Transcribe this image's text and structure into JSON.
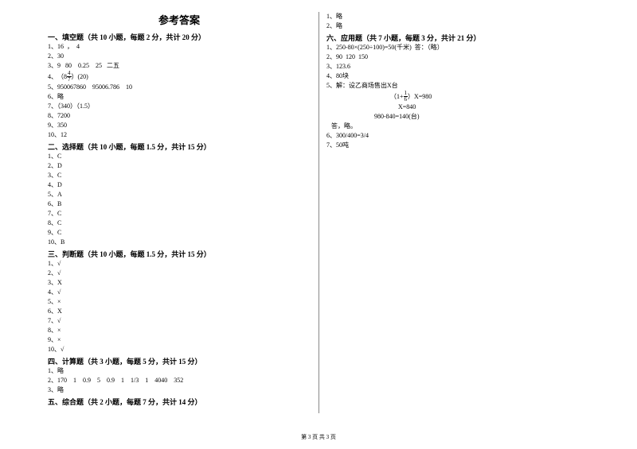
{
  "title": "参考答案",
  "sections": [
    {
      "header": "一、填空题（共 10 小题，每题 2 分，共计 20 分）",
      "items": [
        "1、16  ，  4",
        "2、30",
        "3、9   80    0.25    25   二五",
        {
          "type": "fracline",
          "prefix": "4、",
          "open": "（8",
          "num": "4",
          "den": "7",
          "close": "）(20)"
        },
        "5、950067860    95006.786    10",
        "6、略",
        "7、（340）（1.5）",
        "8、7200",
        "9、350",
        "10、12"
      ]
    },
    {
      "header": "二、选择题（共 10 小题，每题 1.5 分，共计 15 分）",
      "items": [
        "1、C",
        "2、D",
        "3、C",
        "4、D",
        "5、A",
        "6、B",
        "7、C",
        "8、C",
        "9、C",
        "10、B"
      ]
    },
    {
      "header": "三、判断题（共 10 小题，每题 1.5 分，共计 15 分）",
      "items": [
        "1、√",
        "2、√",
        "3、X",
        "4、√",
        "5、×",
        "6、X",
        "7、√",
        "8、×",
        "9、×",
        "10、√"
      ]
    },
    {
      "header": "四、计算题（共 3 小题，每题 5 分，共计 15 分）",
      "items": [
        "1、略",
        "2、170    1    0.9    5    0.9    1    1/3    1    4040    352",
        "3、略"
      ]
    },
    {
      "header": "五、综合题（共 2 小题，每题 7 分，共计 14 分）",
      "items": [
        "1、略",
        "2、略"
      ]
    },
    {
      "header": "六、应用题（共 7 小题，每题 3 分，共计 21 分）",
      "items": [
        "1、250-80×(250÷100)=50(千米)  答：（略）",
        "2、90  120  150",
        "3、123.6",
        "4、80块",
        "5、解：设乙商场售出X台",
        {
          "type": "eqline",
          "indent": "indent-big",
          "pre": "（1+",
          "num": "1",
          "den": "6",
          "post": "）X=980"
        },
        {
          "type": "plain",
          "indent": "indent-big",
          "text": "     X=840"
        },
        {
          "type": "plain",
          "indent": "indent-med",
          "text": "980-840=140(台)"
        },
        {
          "type": "plain",
          "indent": "",
          "text": "   答，略。"
        },
        "6、300/400=3/4",
        "7、50吨"
      ]
    }
  ],
  "footer": "第 3 页 共 3 页"
}
